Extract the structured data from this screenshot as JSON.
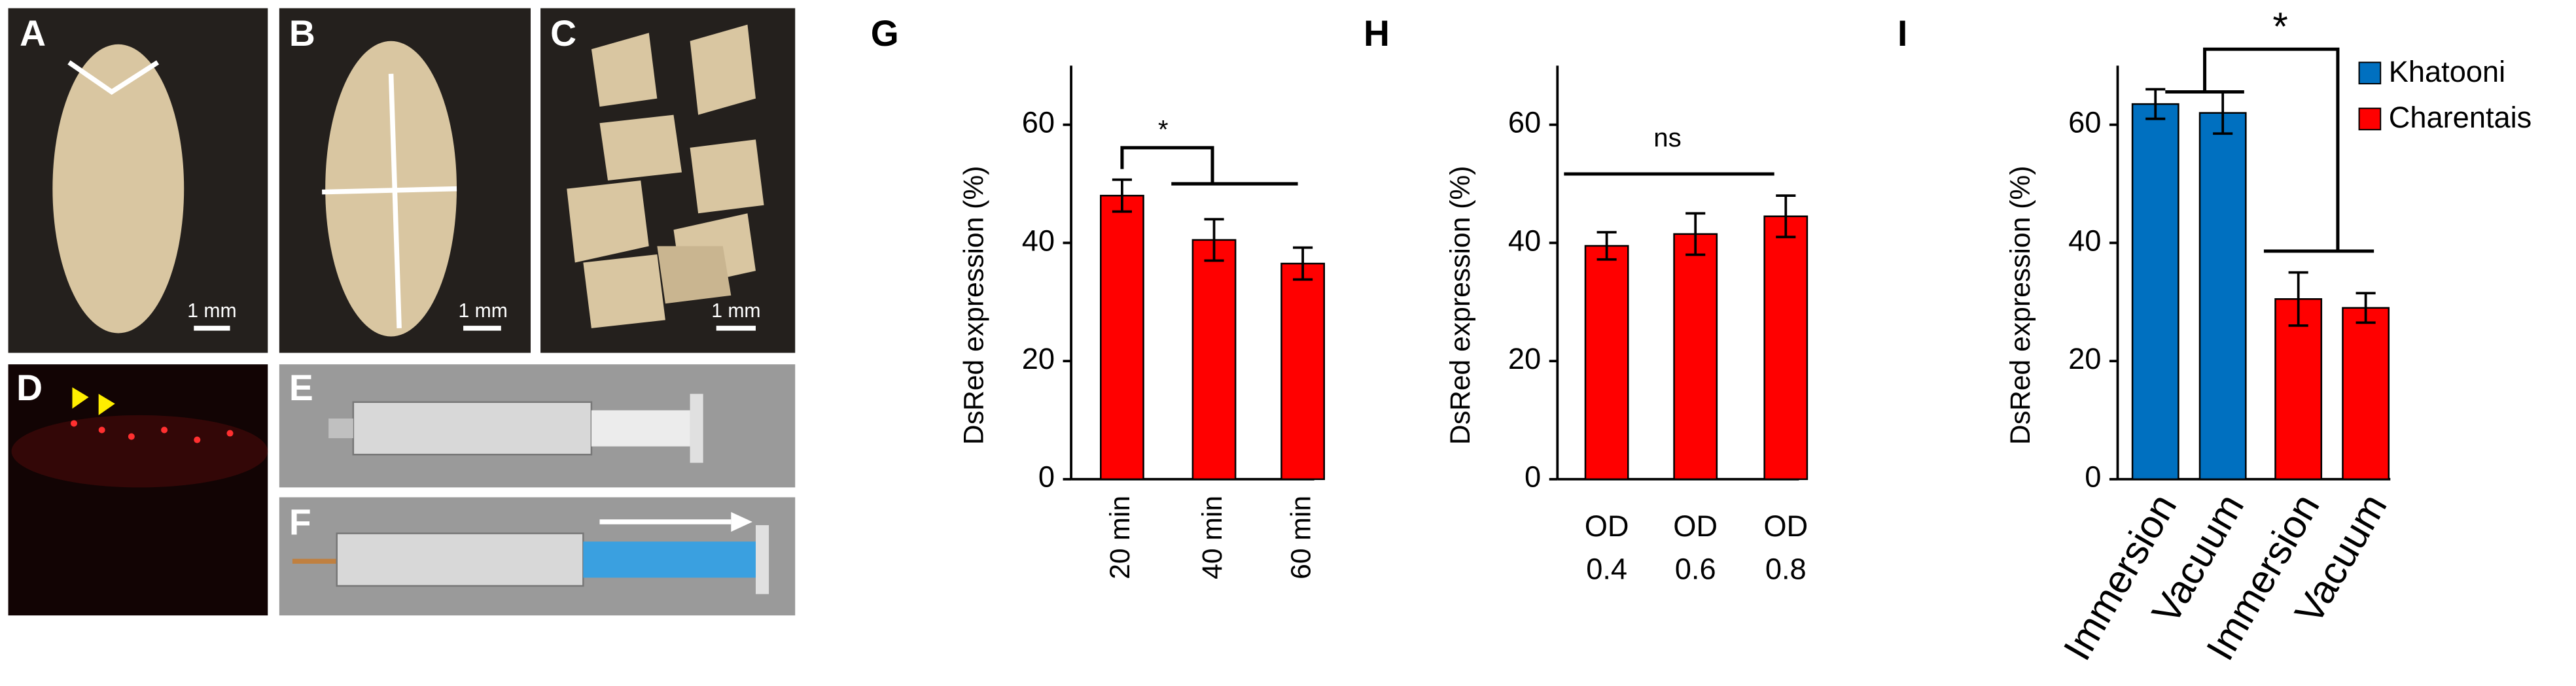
{
  "photo_panels": [
    {
      "label": "A",
      "scale": "1 mm"
    },
    {
      "label": "B",
      "scale": "1 mm"
    },
    {
      "label": "C",
      "scale": "1 mm"
    },
    {
      "label": "D"
    },
    {
      "label": "E"
    },
    {
      "label": "F"
    }
  ],
  "chart_data": [
    {
      "type": "bar",
      "panel": "G",
      "ylabel": "DsRed expression (%)",
      "annotation": "*",
      "categories": [
        "20 min",
        "40 min",
        "60 min"
      ],
      "values": [
        48,
        40.5,
        36.5
      ],
      "errors": [
        2.7,
        3.5,
        2.7
      ],
      "color": "#ff0000",
      "ylim": [
        0,
        70
      ],
      "yticks": [
        0,
        20,
        40,
        60
      ]
    },
    {
      "type": "bar",
      "panel": "H",
      "ylabel": "DsRed expression (%)",
      "annotation": "ns",
      "categories": [
        "OD 0.4",
        "OD 0.6",
        "OD 0.8"
      ],
      "values": [
        39.5,
        41.5,
        44.5
      ],
      "errors": [
        2.3,
        3.5,
        3.5
      ],
      "color": "#ff0000",
      "ylim": [
        0,
        70
      ],
      "yticks": [
        0,
        20,
        40,
        60
      ]
    },
    {
      "type": "bar",
      "panel": "I",
      "ylabel": "DsRed expression (%)",
      "annotation": "*",
      "categories": [
        "Immersion",
        "Vacuum",
        "Immersion",
        "Vacuum"
      ],
      "series": [
        {
          "name": "Khatooni",
          "color": "#0070c0",
          "values": [
            63.5,
            62,
            null,
            null
          ],
          "errors": [
            2.5,
            3.5,
            null,
            null
          ]
        },
        {
          "name": "Charentais",
          "color": "#ff0000",
          "values": [
            null,
            null,
            30.5,
            29
          ],
          "errors": [
            null,
            null,
            4.5,
            2.5
          ]
        }
      ],
      "ylim": [
        0,
        70
      ],
      "yticks": [
        0,
        20,
        40,
        60
      ],
      "legend": "upper right"
    }
  ]
}
